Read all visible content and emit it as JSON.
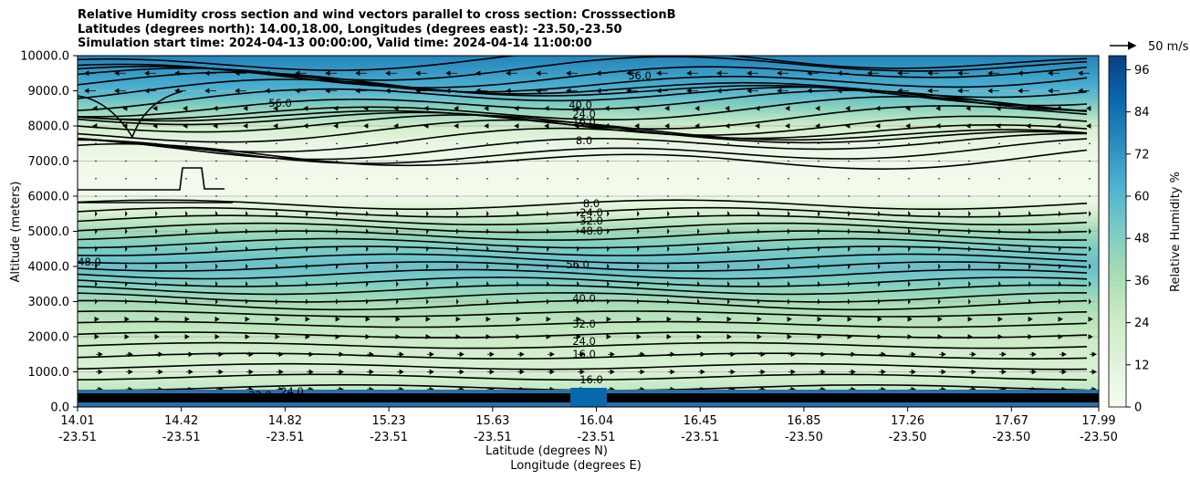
{
  "title_lines": [
    "Relative Humidity cross section and wind vectors parallel to cross section: CrosssectionB",
    "Latitudes (degrees north): 14.00,18.00, Longitudes (degrees east): -23.50,-23.50",
    "Simulation start time: 2024-04-13 00:00:00, Valid time: 2024-04-14 11:00:00"
  ],
  "chart_data": {
    "type": "contour",
    "ylabel": "Altitude (meters)",
    "xlabel_lines": [
      "Latitude (degrees N)",
      "Longitude (degrees E)"
    ],
    "colorbar_label": "Relative Humidity %",
    "ylim": [
      0,
      10000
    ],
    "y_ticks": [
      "0.0",
      "1000.0",
      "2000.0",
      "3000.0",
      "4000.0",
      "5000.0",
      "6000.0",
      "7000.0",
      "8000.0",
      "9000.0",
      "10000.0"
    ],
    "x_ticks": [
      {
        "lat": "14.01",
        "lon": "-23.51"
      },
      {
        "lat": "14.42",
        "lon": "-23.51"
      },
      {
        "lat": "14.82",
        "lon": "-23.51"
      },
      {
        "lat": "15.23",
        "lon": "-23.51"
      },
      {
        "lat": "15.63",
        "lon": "-23.51"
      },
      {
        "lat": "16.04",
        "lon": "-23.51"
      },
      {
        "lat": "16.45",
        "lon": "-23.51"
      },
      {
        "lat": "16.85",
        "lon": "-23.50"
      },
      {
        "lat": "17.26",
        "lon": "-23.50"
      },
      {
        "lat": "17.67",
        "lon": "-23.50"
      },
      {
        "lat": "17.99",
        "lon": "-23.50"
      }
    ],
    "colorbar_ticks": [
      "0",
      "12",
      "24",
      "36",
      "48",
      "60",
      "72",
      "84",
      "96"
    ],
    "colorbar_range": [
      0,
      100
    ],
    "quiver_key": "50 m/s",
    "grid": "horizontal",
    "contour_levels": [
      "8.0",
      "16.0",
      "24.0",
      "32.0",
      "40.0",
      "48.0",
      "56.0"
    ],
    "profile": {
      "altitude": [
        0,
        300,
        500,
        1000,
        1500,
        2000,
        2500,
        3000,
        3500,
        4000,
        4500,
        5000,
        5500,
        6000,
        6500,
        7000,
        7500,
        8000,
        8500,
        9000,
        9500,
        10000
      ],
      "rh": [
        75,
        34,
        28,
        16,
        20,
        26,
        32,
        38,
        48,
        56,
        50,
        40,
        18,
        3,
        3,
        4,
        8,
        22,
        45,
        62,
        70,
        78
      ]
    },
    "colors": {
      "cmap": [
        "#f7fcf0",
        "#e0f3db",
        "#ccebc5",
        "#a8ddb5",
        "#7bccc4",
        "#4eb3d3",
        "#2b8cbe",
        "#0868ac",
        "#084081"
      ]
    }
  }
}
